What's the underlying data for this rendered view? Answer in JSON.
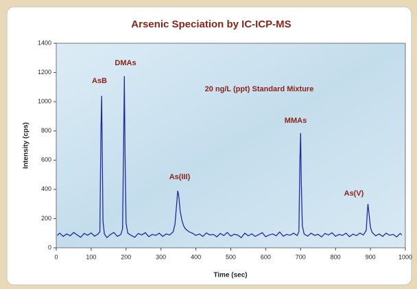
{
  "chart_data": {
    "type": "line",
    "title": "Arsenic Speciation by IC-ICP-MS",
    "subtitle": "20 ng/L (ppt) Standard Mixture",
    "x_label": "Time (sec)",
    "y_label": "Intensity (cps)",
    "annotations": [
      "AsB",
      "DMAs",
      "As(III)",
      "MMAs",
      "As(V)"
    ],
    "x": [
      3,
      10,
      20,
      30,
      40,
      50,
      60,
      70,
      80,
      90,
      100,
      110,
      120,
      125,
      128,
      130,
      132,
      134,
      138,
      145,
      155,
      165,
      175,
      185,
      190,
      193,
      195,
      197,
      200,
      205,
      215,
      225,
      235,
      245,
      255,
      265,
      275,
      285,
      295,
      305,
      315,
      325,
      335,
      340,
      345,
      348,
      350,
      352,
      355,
      360,
      365,
      370,
      380,
      390,
      400,
      410,
      420,
      430,
      440,
      450,
      460,
      470,
      480,
      490,
      500,
      510,
      520,
      530,
      540,
      550,
      560,
      570,
      580,
      590,
      600,
      610,
      620,
      630,
      640,
      650,
      660,
      670,
      680,
      690,
      695,
      698,
      700,
      702,
      705,
      710,
      720,
      730,
      740,
      750,
      760,
      770,
      780,
      790,
      800,
      810,
      820,
      830,
      840,
      850,
      860,
      870,
      880,
      888,
      891,
      893,
      896,
      900,
      905,
      915,
      925,
      935,
      945,
      955,
      965,
      975,
      985,
      990
    ],
    "series": [
      {
        "color": "#1f2a9c",
        "values": [
          85,
          100,
          78,
          95,
          82,
          105,
          88,
          72,
          98,
          86,
          102,
          80,
          95,
          110,
          810,
          1040,
          600,
          180,
          95,
          70,
          90,
          105,
          78,
          92,
          130,
          700,
          1175,
          650,
          170,
          100,
          85,
          72,
          98,
          88,
          104,
          76,
          92,
          85,
          100,
          78,
          95,
          88,
          110,
          160,
          300,
          390,
          370,
          330,
          250,
          190,
          150,
          130,
          110,
          100,
          85,
          95,
          78,
          102,
          88,
          92,
          75,
          98,
          84,
          105,
          80,
          93,
          87,
          70,
          100,
          82,
          96,
          78,
          90,
          104,
          76,
          88,
          95,
          82,
          108,
          79,
          92,
          86,
          100,
          84,
          110,
          600,
          785,
          450,
          150,
          95,
          80,
          100,
          85,
          92,
          74,
          98,
          88,
          103,
          79,
          92,
          85,
          100,
          76,
          94,
          83,
          101,
          88,
          120,
          240,
          300,
          230,
          140,
          105,
          82,
          95,
          78,
          100,
          86,
          92,
          74,
          98,
          88
        ]
      }
    ],
    "xlim": [
      0,
      1000
    ],
    "xticks": [
      0,
      100,
      200,
      300,
      400,
      500,
      600,
      700,
      800,
      900,
      1000
    ],
    "ylim": [
      0,
      1400
    ],
    "yticks": [
      0,
      200,
      400,
      600,
      800,
      1000,
      1200,
      1400
    ]
  }
}
